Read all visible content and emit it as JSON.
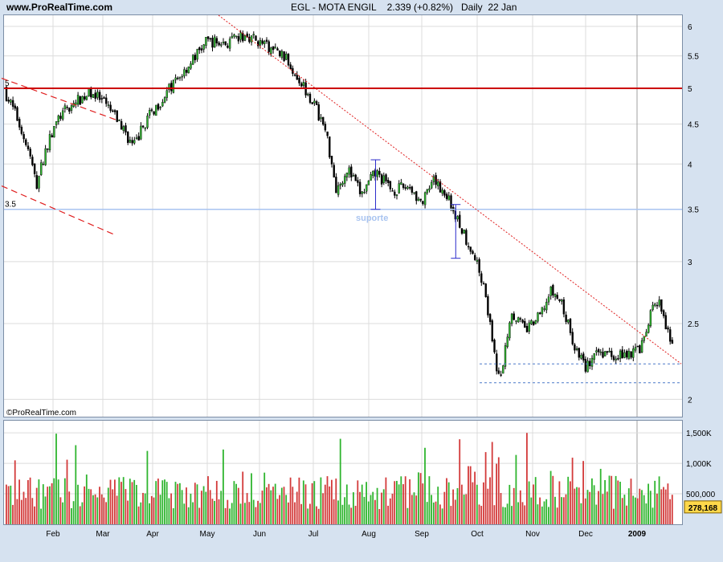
{
  "header": {
    "site": "www.ProRealTime.com",
    "symbol": "EGL - MOTA ENGIL",
    "price": "2.339 (+0.82%)",
    "period": "Daily  22 Jan"
  },
  "watermark": "©ProRealTime.com",
  "colors": {
    "up": "#2fb52f",
    "down": "#d33a3a",
    "resistance": "#cc0000",
    "support": "#a9c4f0",
    "trend": "#e02020",
    "measure": "#2a2acc",
    "grid": "#dcdcdc"
  },
  "chart_data": [
    {
      "type": "candlestick",
      "title": "EGL - MOTA ENGIL",
      "x_months": [
        "Feb",
        "Mar",
        "Apr",
        "May",
        "Jun",
        "Jul",
        "Aug",
        "Sep",
        "Oct",
        "Nov",
        "Dec",
        "2009"
      ],
      "y_ticks": [
        "6",
        "5.5",
        "5",
        "4.5",
        "4",
        "3.5",
        "3",
        "2.5",
        "2"
      ],
      "ylim": [
        1.9,
        6.2
      ],
      "y_scale": "log",
      "grid": true,
      "close_series": [
        {
          "date": "Jan 2",
          "close": 5.0
        },
        {
          "date": "Jan 10",
          "close": 4.6
        },
        {
          "date": "Jan 18",
          "close": 4.1
        },
        {
          "date": "Jan 22",
          "close": 3.75
        },
        {
          "date": "Jan 28",
          "close": 4.2
        },
        {
          "date": "Feb 5",
          "close": 4.6
        },
        {
          "date": "Feb 15",
          "close": 4.8
        },
        {
          "date": "Feb 25",
          "close": 4.95
        },
        {
          "date": "Mar 5",
          "close": 4.7
        },
        {
          "date": "Mar 12",
          "close": 4.5
        },
        {
          "date": "Mar 20",
          "close": 4.2
        },
        {
          "date": "Mar 28",
          "close": 4.55
        },
        {
          "date": "Apr 8",
          "close": 4.9
        },
        {
          "date": "Apr 20",
          "close": 5.3
        },
        {
          "date": "May 1",
          "close": 5.75
        },
        {
          "date": "May 12",
          "close": 5.7
        },
        {
          "date": "May 25",
          "close": 5.85
        },
        {
          "date": "Jun 5",
          "close": 5.65
        },
        {
          "date": "Jun 15",
          "close": 5.5
        },
        {
          "date": "Jun 25",
          "close": 5.1
        },
        {
          "date": "Jul 1",
          "close": 4.8
        },
        {
          "date": "Jul 8",
          "close": 4.4
        },
        {
          "date": "Jul 14",
          "close": 3.7
        },
        {
          "date": "Jul 20",
          "close": 3.95
        },
        {
          "date": "Jul 28",
          "close": 3.65
        },
        {
          "date": "Aug 5",
          "close": 3.9
        },
        {
          "date": "Aug 15",
          "close": 3.7
        },
        {
          "date": "Aug 25",
          "close": 3.75
        },
        {
          "date": "Sep 1",
          "close": 3.55
        },
        {
          "date": "Sep 8",
          "close": 3.8
        },
        {
          "date": "Sep 15",
          "close": 3.65
        },
        {
          "date": "Sep 22",
          "close": 3.35
        },
        {
          "date": "Sep 29",
          "close": 3.1
        },
        {
          "date": "Oct 5",
          "close": 2.8
        },
        {
          "date": "Oct 10",
          "close": 2.3
        },
        {
          "date": "Oct 14",
          "close": 2.1
        },
        {
          "date": "Oct 20",
          "close": 2.6
        },
        {
          "date": "Oct 28",
          "close": 2.45
        },
        {
          "date": "Nov 5",
          "close": 2.55
        },
        {
          "date": "Nov 12",
          "close": 2.75
        },
        {
          "date": "Nov 18",
          "close": 2.65
        },
        {
          "date": "Nov 25",
          "close": 2.35
        },
        {
          "date": "Dec 1",
          "close": 2.2
        },
        {
          "date": "Dec 10",
          "close": 2.3
        },
        {
          "date": "Dec 20",
          "close": 2.28
        },
        {
          "date": "Dec 30",
          "close": 2.3
        },
        {
          "date": "Jan 5",
          "close": 2.35
        },
        {
          "date": "Jan 10",
          "close": 2.6
        },
        {
          "date": "Jan 15",
          "close": 2.65
        },
        {
          "date": "Jan 22",
          "close": 2.339
        }
      ],
      "annotations": [
        {
          "type": "hline",
          "value": 5.0,
          "label": "5",
          "color": "#cc0000"
        },
        {
          "type": "hline",
          "value": 3.5,
          "label": "3.5",
          "color": "#a9c4f0"
        },
        {
          "type": "text",
          "label": "suporte",
          "value": 3.45
        },
        {
          "type": "trendline",
          "from": {
            "date": "Jun 5",
            "value": 6.2
          },
          "to": {
            "date": "Jan 22",
            "value": 2.22
          }
        },
        {
          "type": "trendline",
          "from": {
            "date": "Jan 1",
            "value": 5.15
          },
          "to": {
            "date": "Mar 10",
            "value": 4.55
          }
        },
        {
          "type": "trendline",
          "from": {
            "date": "Jan 1",
            "value": 3.75
          },
          "to": {
            "date": "Mar 8",
            "value": 3.25
          }
        },
        {
          "type": "range_bar",
          "date": "Aug 5",
          "low": 3.5,
          "high": 4.05
        },
        {
          "type": "range_bar",
          "date": "Sep 20",
          "low": 3.03,
          "high": 3.55
        },
        {
          "type": "hline_dashed",
          "value": 2.22,
          "from_date": "Oct 1",
          "to_date": "Jan 22"
        },
        {
          "type": "hline_dashed",
          "value": 2.1,
          "from_date": "Oct 1",
          "to_date": "Jan 22"
        }
      ]
    },
    {
      "type": "bar",
      "title": "Volume",
      "y_ticks": [
        "1,500K",
        "1,000K",
        "500,000"
      ],
      "ylim": [
        0,
        1700000
      ],
      "last_volume": "278,168",
      "volume_series": [
        {
          "date": "Jan",
          "volume": 1500000
        },
        {
          "date": "Feb",
          "volume": 700000
        },
        {
          "date": "Mar",
          "volume": 600000
        },
        {
          "date": "Apr",
          "volume": 1000000
        },
        {
          "date": "May",
          "volume": 900000
        },
        {
          "date": "Jun",
          "volume": 1530000
        },
        {
          "date": "Jul",
          "volume": 1100000
        },
        {
          "date": "Aug",
          "volume": 750000
        },
        {
          "date": "Sep",
          "volume": 1490000
        },
        {
          "date": "Oct",
          "volume": 1100000
        },
        {
          "date": "Nov",
          "volume": 700000
        },
        {
          "date": "Dec",
          "volume": 1150000
        },
        {
          "date": "2009",
          "volume": 800000
        }
      ]
    }
  ]
}
